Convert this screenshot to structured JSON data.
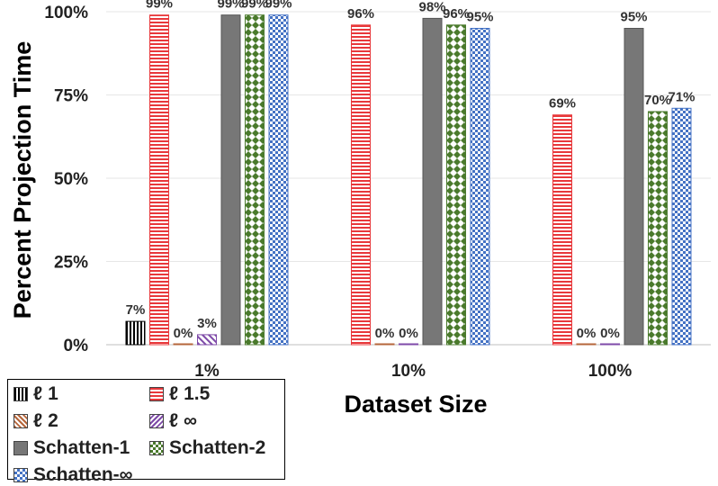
{
  "chart_data": {
    "type": "bar",
    "title": "",
    "xlabel": "Dataset Size",
    "ylabel": "Percent Projection Time",
    "ylim": [
      0,
      100
    ],
    "yticks": [
      "0%",
      "25%",
      "50%",
      "75%",
      "100%"
    ],
    "categories": [
      "1%",
      "10%",
      "100%"
    ],
    "series": [
      {
        "name": "ℓ 1",
        "pattern": "vertical",
        "color": "#000000",
        "values": [
          7,
          null,
          null
        ],
        "labels": [
          "7%",
          "",
          ""
        ]
      },
      {
        "name": "ℓ 1.5",
        "pattern": "horizontal",
        "color": "#e8383b",
        "values": [
          99,
          96,
          69
        ],
        "labels": [
          "99%",
          "96%",
          "69%"
        ]
      },
      {
        "name": "ℓ 2",
        "pattern": "diag-down",
        "color": "#b5653a",
        "values": [
          0,
          0,
          0
        ],
        "labels": [
          "0%",
          "0%",
          "0%"
        ]
      },
      {
        "name": "ℓ ∞",
        "pattern": "diag-up",
        "color": "#7e4aa8",
        "values": [
          3,
          0,
          0
        ],
        "labels": [
          "3%",
          "0%",
          "0%"
        ]
      },
      {
        "name": "Schatten-1",
        "pattern": "solid",
        "color": "#777777",
        "values": [
          99,
          98,
          95
        ],
        "labels": [
          "99%",
          "98%",
          "95%"
        ]
      },
      {
        "name": "Schatten-2",
        "pattern": "diamond",
        "color": "#4a7a2c",
        "values": [
          99,
          96,
          70
        ],
        "labels": [
          "99%",
          "96%",
          "70%"
        ]
      },
      {
        "name": "Schatten-∞",
        "pattern": "checker",
        "color": "#4472c4",
        "values": [
          99,
          95,
          71
        ],
        "labels": [
          "99%",
          "95%",
          "71%"
        ]
      }
    ],
    "legend_position": "bottom-left",
    "grid": true
  }
}
